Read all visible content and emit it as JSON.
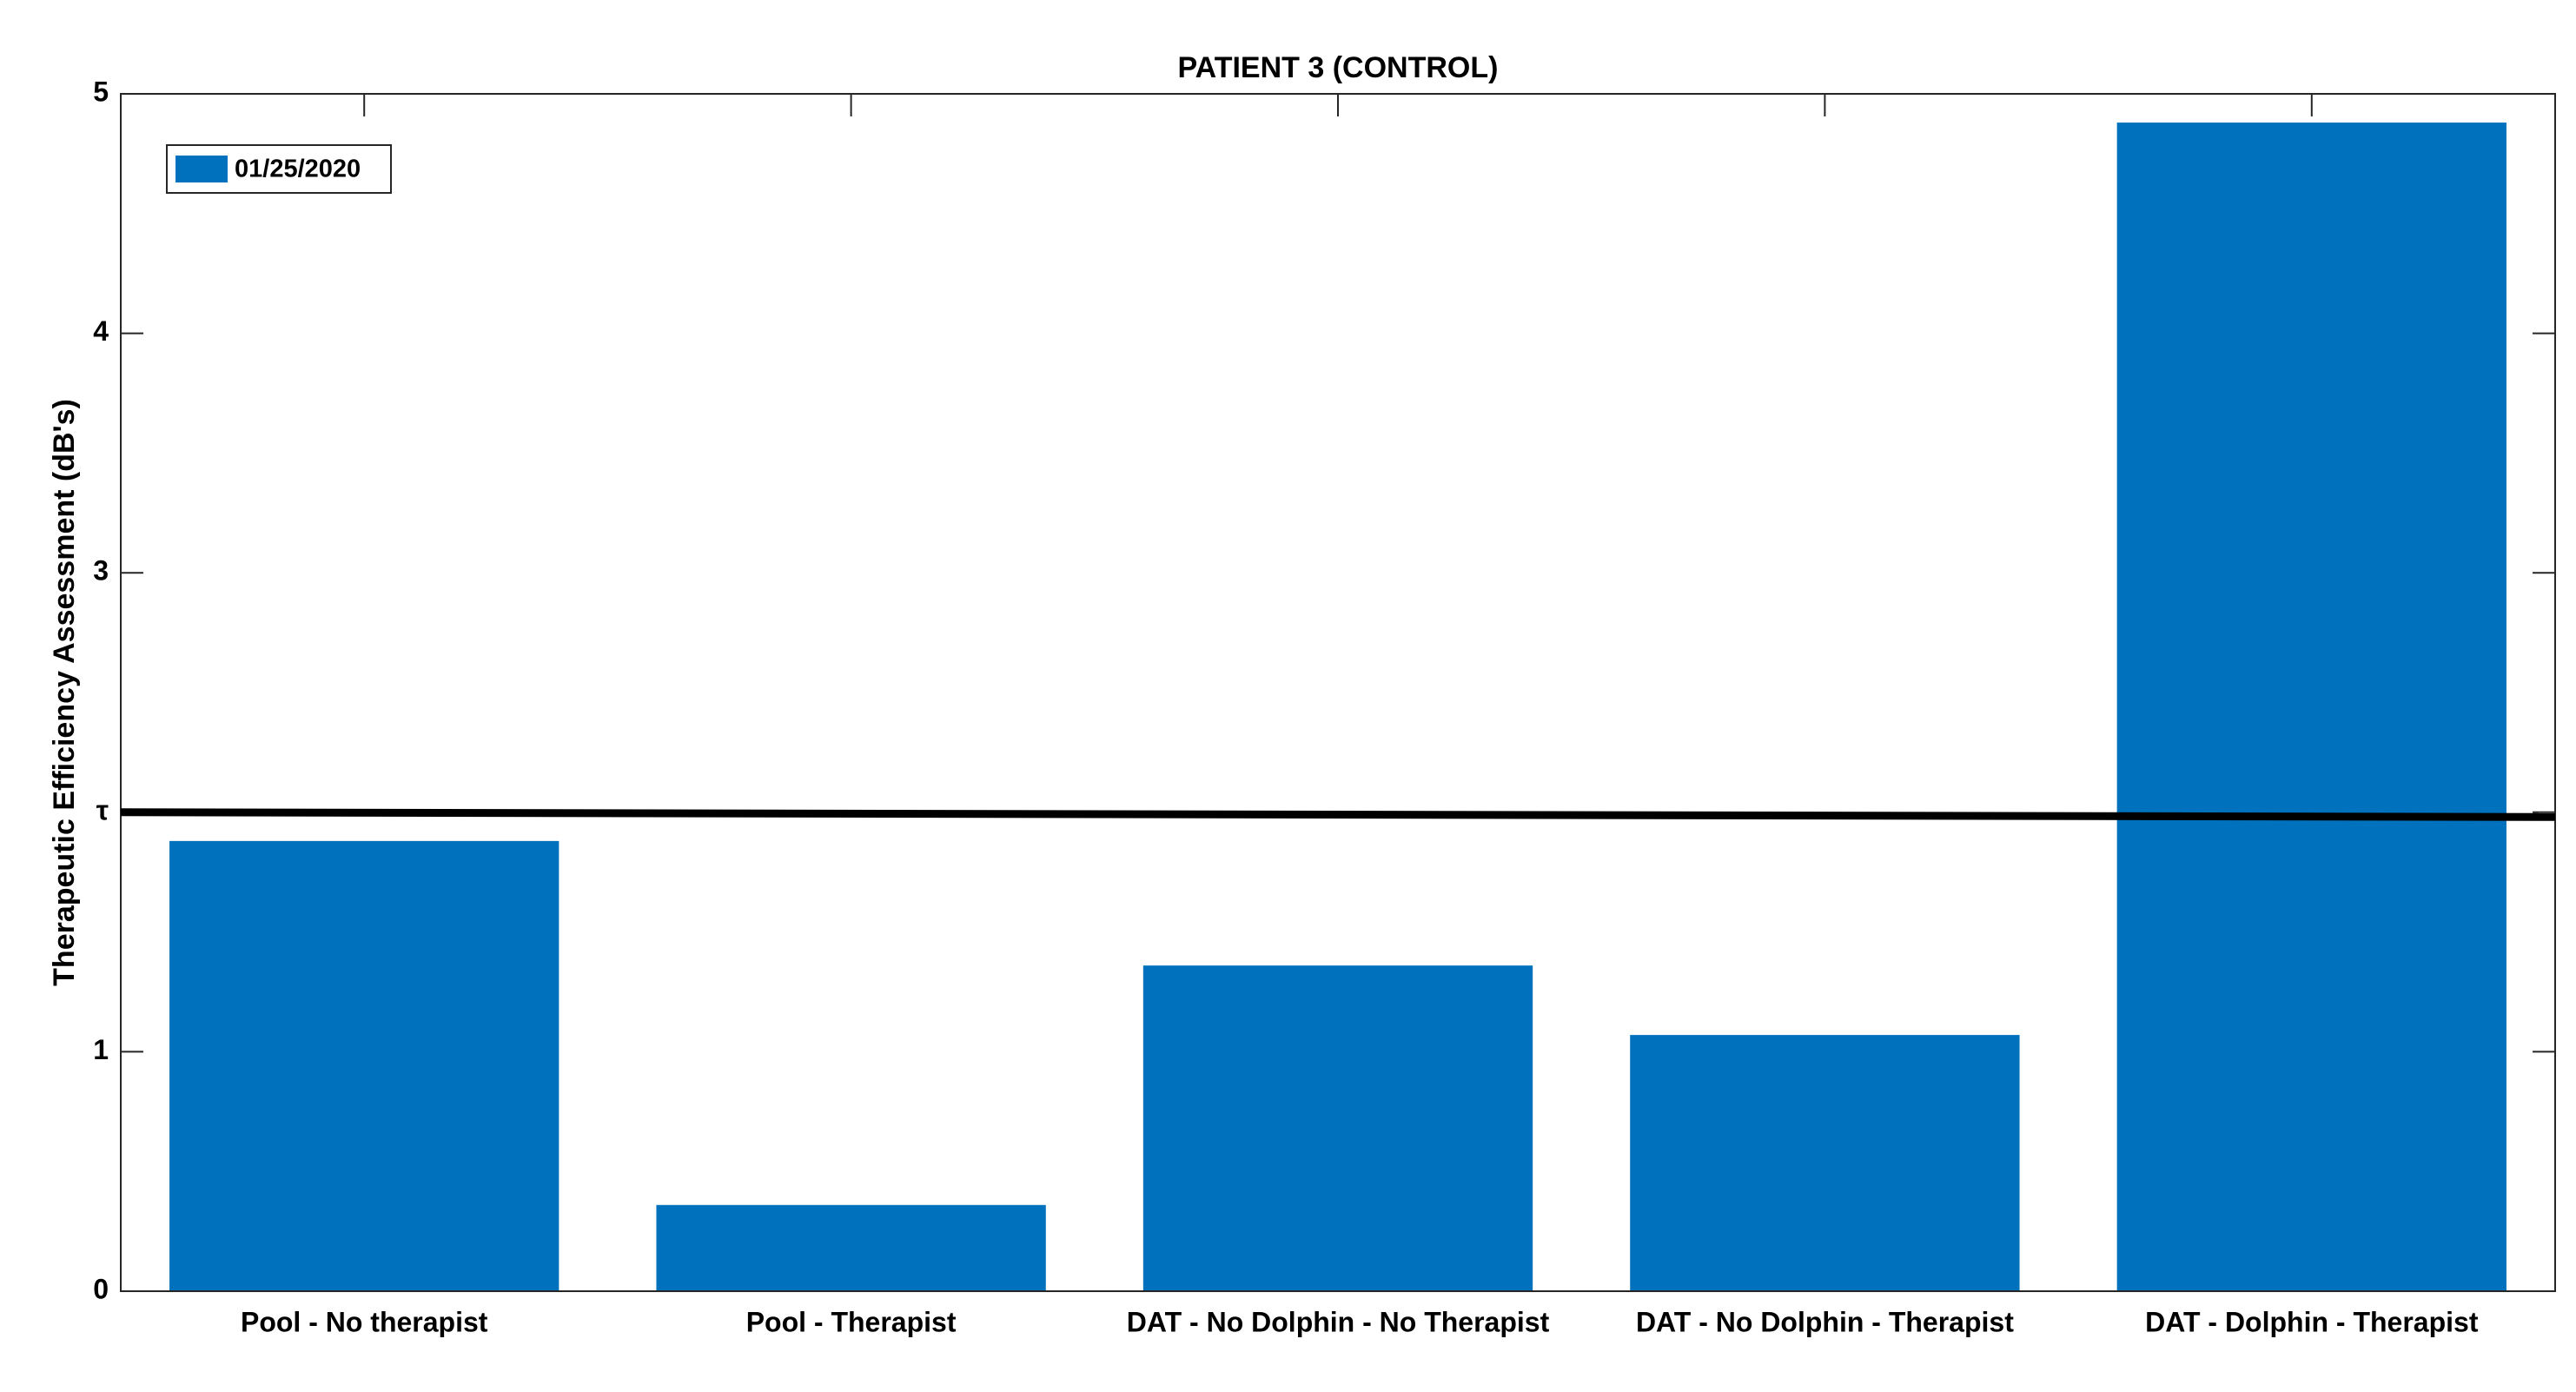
{
  "chart_data": {
    "type": "bar",
    "title": "PATIENT 3 (CONTROL)",
    "y_label": "Therapeutic Efficiency Assessment (dB's)",
    "categories": [
      "Pool - No therapist",
      "Pool - Therapist",
      "DAT - No Dolphin - No Therapist",
      "DAT - No Dolphin - Therapist",
      "DAT -  Dolphin - Therapist"
    ],
    "series": [
      {
        "name": "01/25/2020",
        "color": "#0072bd",
        "values": [
          1.88,
          0.36,
          1.36,
          1.07,
          4.88
        ]
      }
    ],
    "ylim": [
      0,
      5
    ],
    "yticks": [
      0,
      1,
      {
        "value": 2,
        "label": "τ"
      },
      3,
      4,
      5
    ],
    "threshold_line": [
      2.0,
      1.98
    ],
    "grid": false,
    "legend": "upper left"
  }
}
